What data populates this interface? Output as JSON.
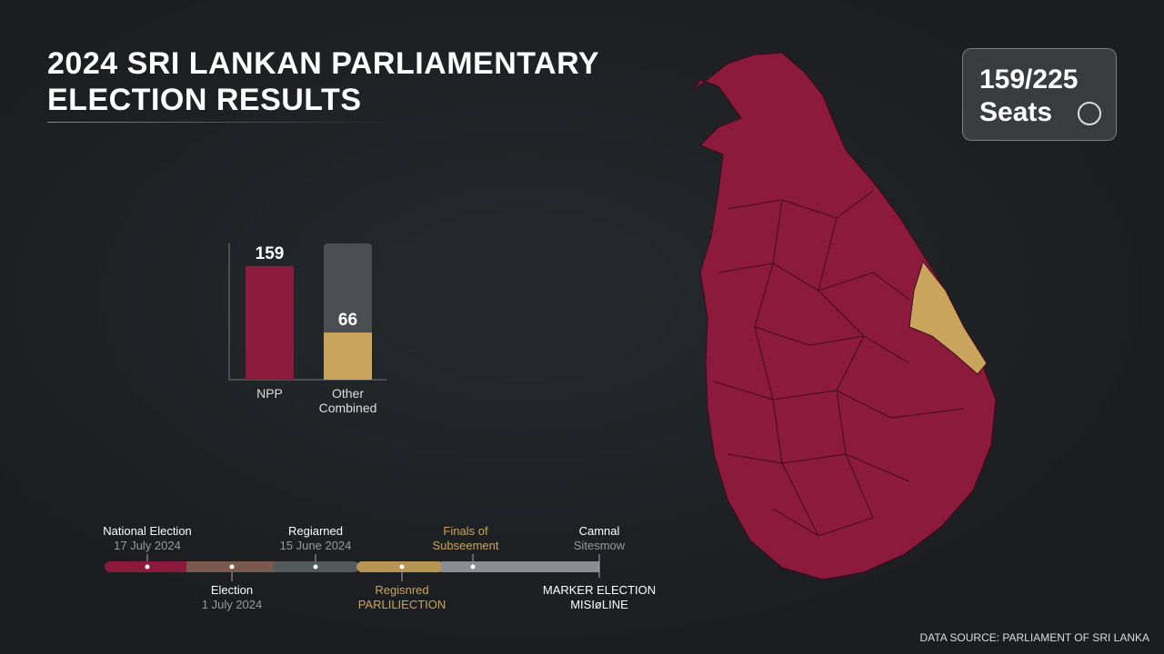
{
  "title_lines": [
    "2024 SRI LANKAN PARLIAMENTARY",
    "ELECTION RESULTS"
  ],
  "seats_badge": {
    "line1": "159/225",
    "line2": "Seats",
    "icon": "compass-icon"
  },
  "chart_data": {
    "type": "bar",
    "categories": [
      "NPP",
      "Other Combined"
    ],
    "values": [
      159,
      66
    ],
    "data_labels": [
      "159",
      "66"
    ],
    "total": 225,
    "colors": [
      "#8c1a3c",
      "#c9a45c"
    ],
    "track_color": "#4a4d52"
  },
  "map": {
    "majority_color": "#8c1a3c",
    "other_color": "#c9a45c"
  },
  "timeline": {
    "above": [
      {
        "t": "National Election",
        "s": "17 July 2024"
      },
      {
        "t": "Regiarned",
        "s": "15 June 2024"
      },
      {
        "t": "Finals of",
        "s": "Subseement",
        "gold": true
      },
      {
        "t": "Camnal",
        "s": "Sitesmow"
      }
    ],
    "below": [
      {
        "t": "Election",
        "s": "1 July 2024"
      },
      {
        "t": "Regisnred",
        "s": "PARLILIECTION",
        "gold": true
      },
      {
        "t": "MARKER ELECTION",
        "s": "MISIøLINE"
      }
    ]
  },
  "source": "DATA SOURCE: PARLIAMENT OF SRI LANKA"
}
